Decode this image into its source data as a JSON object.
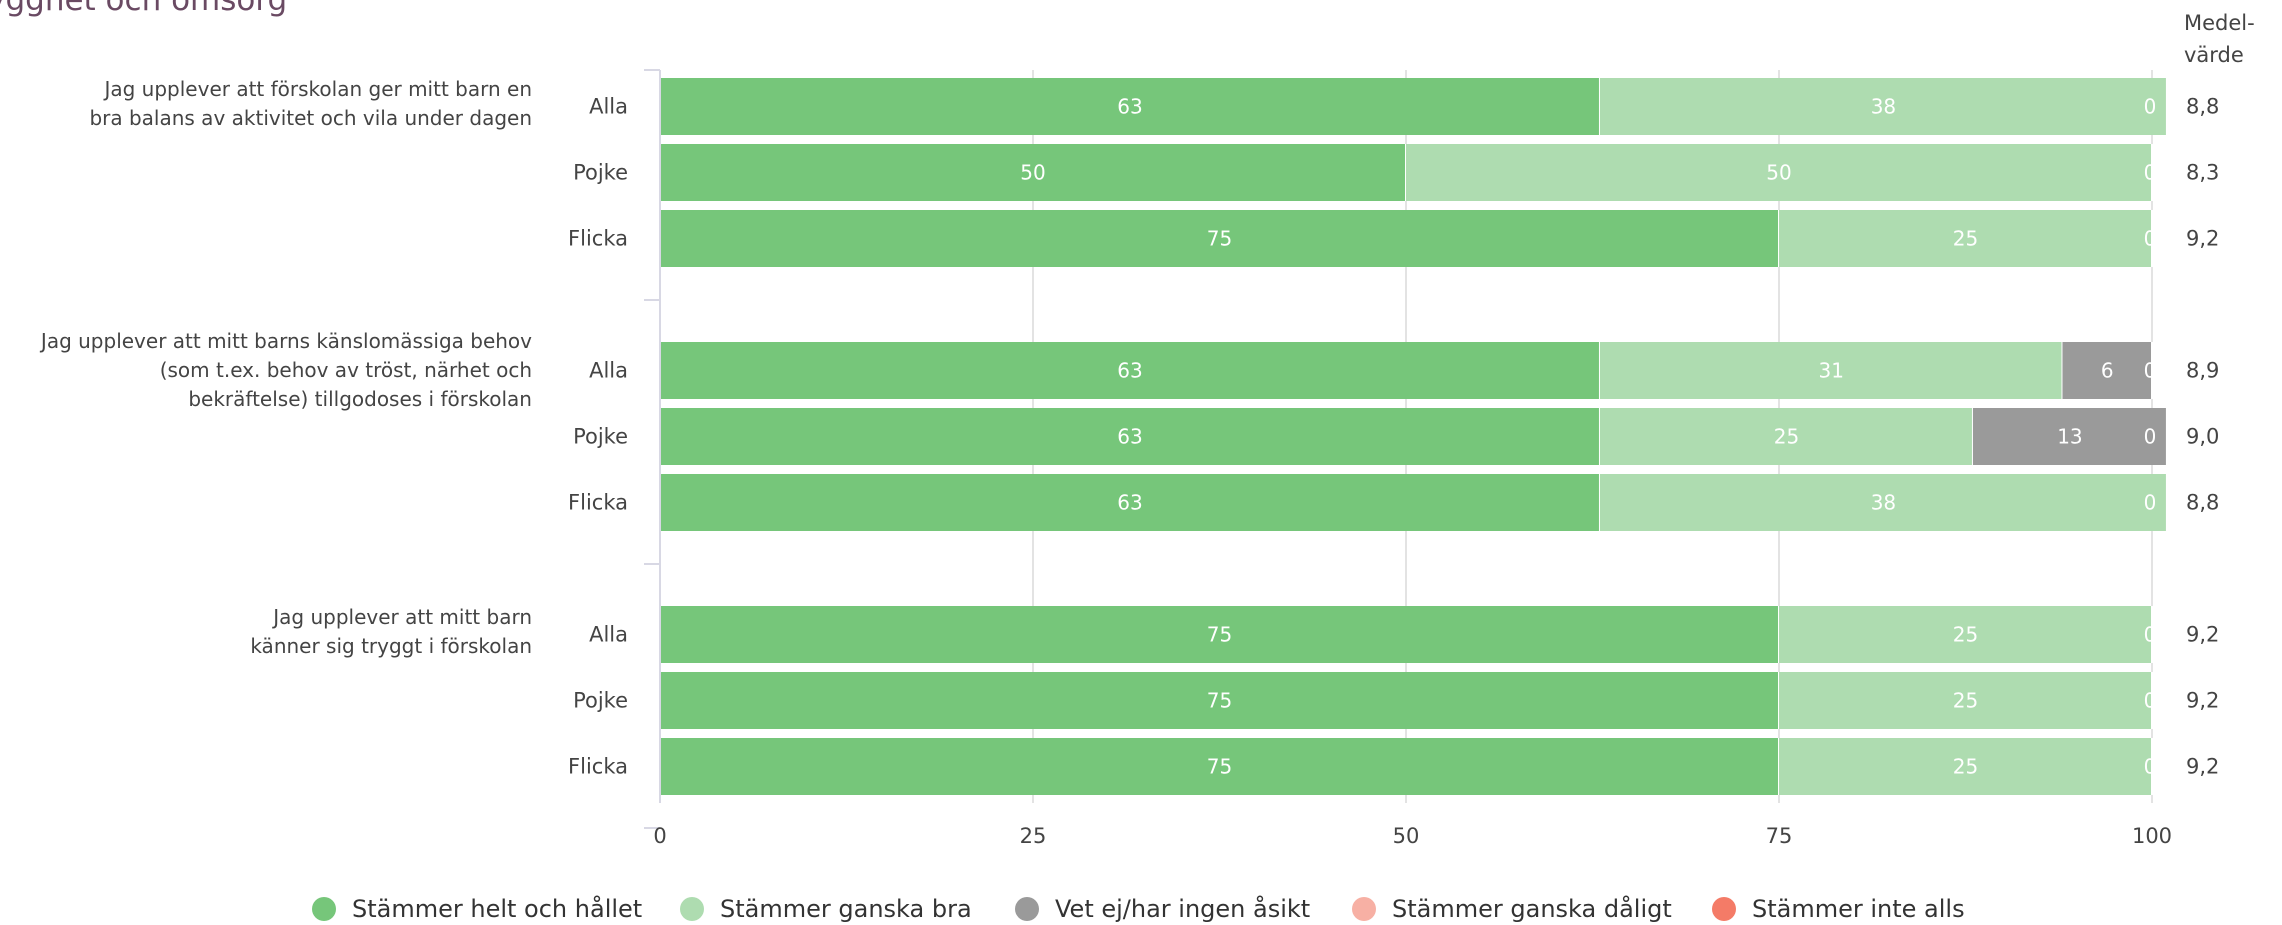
{
  "section_title": "Trygghet och omsorg",
  "mean_header": [
    "Medel-",
    "värde"
  ],
  "chart_data": {
    "type": "bar",
    "orientation": "horizontal",
    "stacked": true,
    "xlim": [
      0,
      100
    ],
    "xticks": [
      0,
      25,
      50,
      75,
      100
    ],
    "grid": true,
    "legend_position": "bottom",
    "series": [
      {
        "name": "Stämmer helt och hållet",
        "color": "#76c67a"
      },
      {
        "name": "Stämmer ganska bra",
        "color": "#aedcb0"
      },
      {
        "name": "Vet ej/har ingen åsikt",
        "color": "#9a9a9a"
      },
      {
        "name": "Stämmer ganska dåligt",
        "color": "#f7b0a4"
      },
      {
        "name": "Stämmer inte alls",
        "color": "#f47b67"
      }
    ],
    "questions": [
      {
        "label": [
          "Jag upplever att förskolan ger mitt barn en",
          "bra balans av aktivitet och vila under dagen"
        ],
        "groups": [
          {
            "name": "Alla",
            "values": [
              63,
              38,
              0,
              0,
              0
            ],
            "mean": "8,8"
          },
          {
            "name": "Pojke",
            "values": [
              50,
              50,
              0,
              0,
              0
            ],
            "mean": "8,3"
          },
          {
            "name": "Flicka",
            "values": [
              75,
              25,
              0,
              0,
              0
            ],
            "mean": "9,2"
          }
        ]
      },
      {
        "label": [
          "Jag upplever att mitt barns känslomässiga behov",
          "(som t.ex. behov av tröst, närhet och",
          "bekräftelse) tillgodoses i förskolan"
        ],
        "groups": [
          {
            "name": "Alla",
            "values": [
              63,
              31,
              6,
              0,
              0
            ],
            "mean": "8,9"
          },
          {
            "name": "Pojke",
            "values": [
              63,
              25,
              13,
              0,
              0
            ],
            "mean": "9,0"
          },
          {
            "name": "Flicka",
            "values": [
              63,
              38,
              0,
              0,
              0
            ],
            "mean": "8,8"
          }
        ]
      },
      {
        "label": [
          "Jag upplever att mitt barn",
          "känner sig tryggt i förskolan"
        ],
        "groups": [
          {
            "name": "Alla",
            "values": [
              75,
              25,
              0,
              0,
              0
            ],
            "mean": "9,2"
          },
          {
            "name": "Pojke",
            "values": [
              75,
              25,
              0,
              0,
              0
            ],
            "mean": "9,2"
          },
          {
            "name": "Flicka",
            "values": [
              75,
              25,
              0,
              0,
              0
            ],
            "mean": "9,2"
          }
        ]
      }
    ]
  }
}
